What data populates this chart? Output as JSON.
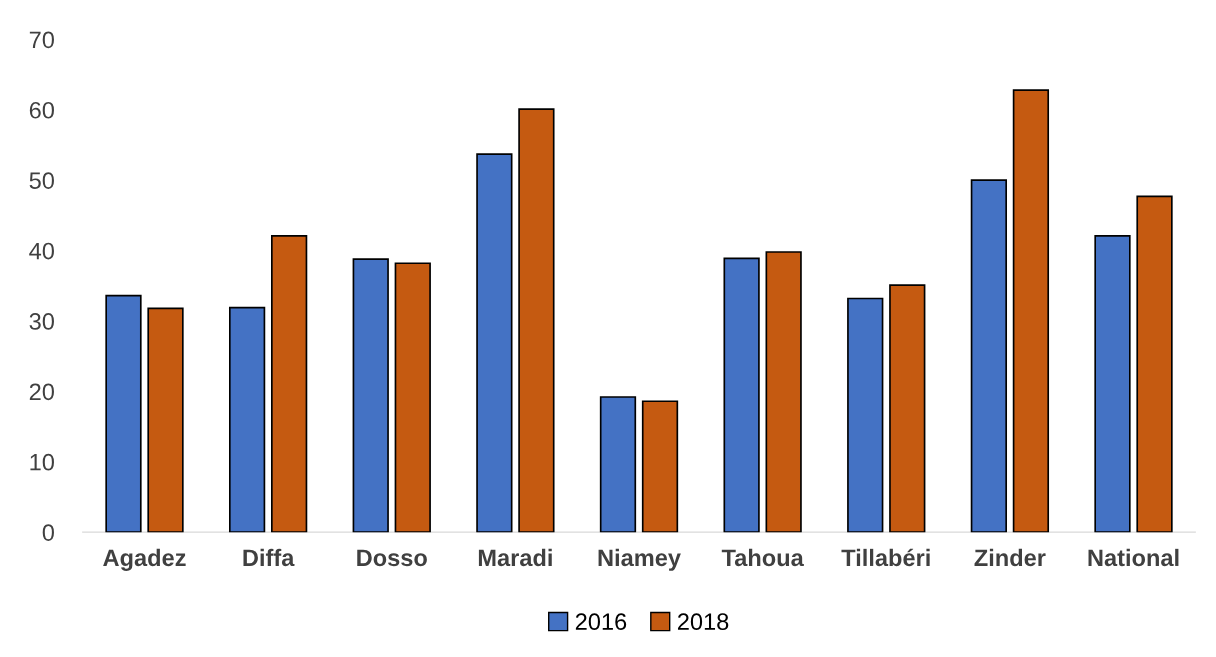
{
  "chart_data": {
    "type": "bar",
    "categories": [
      "Agadez",
      "Diffa",
      "Dosso",
      "Maradi",
      "Niamey",
      "Tahoua",
      "Tillabéri",
      "Zinder",
      "National"
    ],
    "series": [
      {
        "name": "2016",
        "color": "#4472c4",
        "values": [
          33.6,
          31.9,
          38.8,
          53.7,
          19.2,
          38.9,
          33.2,
          50.0,
          42.1
        ]
      },
      {
        "name": "2018",
        "color": "#c55a11",
        "values": [
          31.8,
          42.1,
          38.2,
          60.1,
          18.6,
          39.8,
          35.1,
          62.8,
          47.7
        ]
      }
    ],
    "ylim": [
      0,
      70
    ],
    "yticks": [
      0,
      10,
      20,
      30,
      40,
      50,
      60,
      70
    ],
    "grid": false,
    "legend": "bottom"
  }
}
